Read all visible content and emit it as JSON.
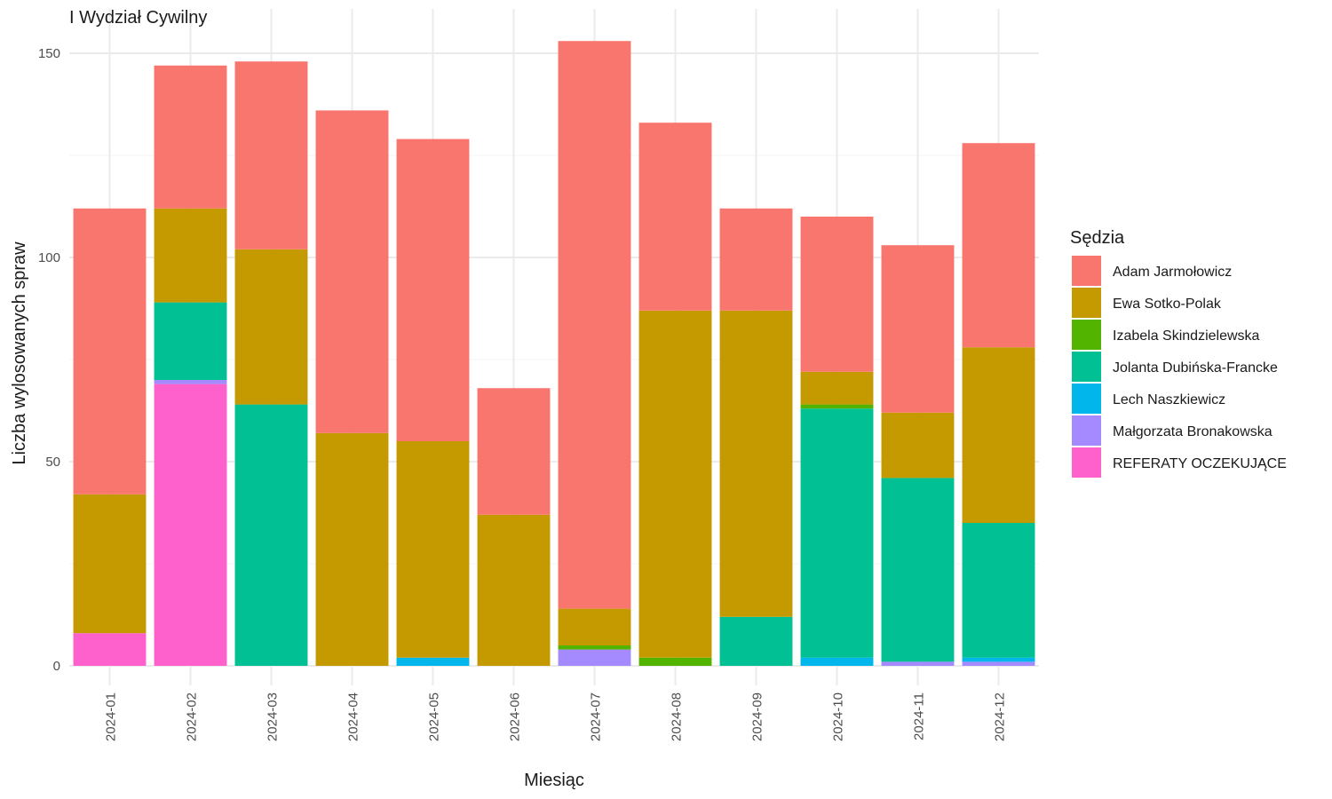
{
  "chart_data": {
    "type": "bar",
    "stacked": true,
    "title": "I Wydział Cywilny",
    "xlabel": "Miesiąc",
    "ylabel": "Liczba wylosowanych spraw",
    "ylim": [
      0,
      156
    ],
    "yticks": [
      0,
      50,
      100,
      150
    ],
    "grid": true,
    "legend_title": "Sędzia",
    "legend_position": "right",
    "categories": [
      "2024-01",
      "2024-02",
      "2024-03",
      "2024-04",
      "2024-05",
      "2024-06",
      "2024-07",
      "2024-08",
      "2024-09",
      "2024-10",
      "2024-11",
      "2024-12"
    ],
    "series": [
      {
        "name": "REFERATY OCZEKUJĄCE",
        "color": "#FF61CC",
        "values": [
          8,
          69,
          0,
          0,
          0,
          0,
          0,
          0,
          0,
          0,
          0,
          0
        ]
      },
      {
        "name": "Małgorzata Bronakowska",
        "color": "#A58AFF",
        "values": [
          0,
          1,
          0,
          0,
          0,
          0,
          4,
          0,
          0,
          0,
          1,
          1
        ]
      },
      {
        "name": "Lech Naszkiewicz",
        "color": "#00B6EB",
        "values": [
          0,
          0,
          0,
          0,
          2,
          0,
          0,
          0,
          0,
          2,
          0,
          1
        ]
      },
      {
        "name": "Jolanta Dubińska-Francke",
        "color": "#00C094",
        "values": [
          0,
          19,
          64,
          0,
          0,
          0,
          0,
          0,
          12,
          61,
          45,
          33
        ]
      },
      {
        "name": "Izabela Skindzielewska",
        "color": "#53B400",
        "values": [
          0,
          0,
          0,
          0,
          0,
          0,
          1,
          2,
          0,
          1,
          0,
          0
        ]
      },
      {
        "name": "Ewa Sotko-Polak",
        "color": "#C49A00",
        "values": [
          34,
          23,
          38,
          57,
          53,
          37,
          9,
          85,
          75,
          8,
          16,
          43
        ]
      },
      {
        "name": "Adam Jarmołowicz",
        "color": "#F8766D",
        "values": [
          70,
          35,
          46,
          79,
          74,
          31,
          139,
          46,
          25,
          38,
          41,
          50
        ]
      }
    ],
    "legend_order": [
      "Adam Jarmołowicz",
      "Ewa Sotko-Polak",
      "Izabela Skindzielewska",
      "Jolanta Dubińska-Francke",
      "Lech Naszkiewicz",
      "Małgorzata Bronakowska",
      "REFERATY OCZEKUJĄCE"
    ]
  }
}
